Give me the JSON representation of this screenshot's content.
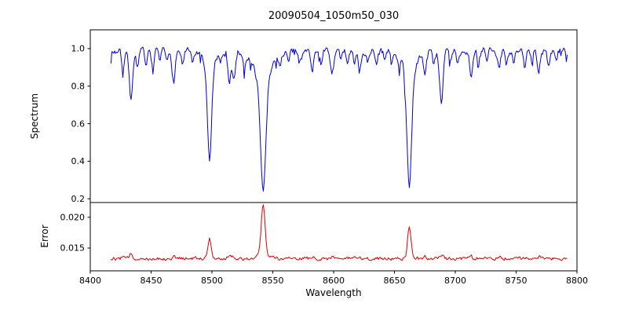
{
  "figure": {
    "title": "20090504_1050m50_030",
    "xlabel": "Wavelength",
    "background": "#ffffff"
  },
  "chart_data": [
    {
      "type": "line",
      "name": "spectrum",
      "ylabel": "Spectrum",
      "line_color": "#0000dd",
      "legend": "none",
      "grid": false,
      "xlim": [
        8400,
        8800
      ],
      "ylim": [
        0.18,
        1.1
      ],
      "xticks": [
        8400,
        8450,
        8500,
        8550,
        8600,
        8650,
        8700,
        8750,
        8800
      ],
      "yticks": [
        0.2,
        0.4,
        0.6,
        0.8,
        1.0
      ],
      "ytick_labels": [
        "0.2",
        "0.4",
        "0.6",
        "0.8",
        "1.0"
      ],
      "x_start": 8417,
      "x_end": 8792,
      "sample_step": 0.75,
      "continuum": 0.985,
      "noise_seed": 7,
      "noise_amplitude": 0.016,
      "absorption_lines": [
        [
          8427,
          0.1,
          1.1
        ],
        [
          8433.5,
          0.27,
          1.3
        ],
        [
          8439,
          0.09,
          1.0
        ],
        [
          8446,
          0.07,
          1.0
        ],
        [
          8451.5,
          0.1,
          1.1
        ],
        [
          8457,
          0.06,
          0.9
        ],
        [
          8463,
          0.06,
          0.9
        ],
        [
          8468.5,
          0.16,
          1.2
        ],
        [
          8476,
          0.07,
          1.0
        ],
        [
          8484,
          0.07,
          1.0
        ],
        [
          8498,
          0.5,
          1.7
        ],
        [
          8498,
          0.08,
          5.0
        ],
        [
          8507,
          0.06,
          0.9
        ],
        [
          8514.2,
          0.16,
          1.2
        ],
        [
          8518.1,
          0.15,
          1.2
        ],
        [
          8527,
          0.07,
          1.0
        ],
        [
          8536,
          0.05,
          0.9
        ],
        [
          8542.1,
          0.62,
          2.2
        ],
        [
          8542.1,
          0.13,
          7.0
        ],
        [
          8556,
          0.06,
          0.9
        ],
        [
          8563,
          0.06,
          0.9
        ],
        [
          8572,
          0.06,
          0.9
        ],
        [
          8582.5,
          0.09,
          1.1
        ],
        [
          8590,
          0.06,
          0.9
        ],
        [
          8598.8,
          0.12,
          1.2
        ],
        [
          8606,
          0.06,
          0.9
        ],
        [
          8611.5,
          0.08,
          1.0
        ],
        [
          8617,
          0.06,
          0.9
        ],
        [
          8621.5,
          0.09,
          1.1
        ],
        [
          8628,
          0.06,
          0.9
        ],
        [
          8635,
          0.06,
          0.9
        ],
        [
          8642,
          0.05,
          0.9
        ],
        [
          8648,
          0.06,
          0.9
        ],
        [
          8654,
          0.06,
          0.9
        ],
        [
          8662.2,
          0.62,
          1.9
        ],
        [
          8662.2,
          0.1,
          6.0
        ],
        [
          8674.8,
          0.11,
          1.1
        ],
        [
          8682,
          0.06,
          0.9
        ],
        [
          8688.6,
          0.27,
          1.4
        ],
        [
          8696,
          0.06,
          0.9
        ],
        [
          8702,
          0.06,
          0.9
        ],
        [
          8713,
          0.12,
          1.2
        ],
        [
          8719,
          0.06,
          0.9
        ],
        [
          8726,
          0.06,
          0.9
        ],
        [
          8736,
          0.1,
          1.1
        ],
        [
          8742,
          0.06,
          0.9
        ],
        [
          8748,
          0.05,
          0.9
        ],
        [
          8757,
          0.08,
          1.0
        ],
        [
          8763,
          0.06,
          0.9
        ],
        [
          8768.5,
          0.11,
          1.1
        ],
        [
          8777,
          0.09,
          1.1
        ],
        [
          8783,
          0.06,
          0.9
        ]
      ]
    },
    {
      "type": "line",
      "name": "error",
      "ylabel": "Error",
      "line_color": "#dd0000",
      "legend": "none",
      "grid": false,
      "xlim": [
        8400,
        8800
      ],
      "ylim": [
        0.0113,
        0.0224
      ],
      "yticks": [
        0.015,
        0.02
      ],
      "ytick_labels": [
        "0.015",
        "0.020"
      ],
      "x_start": 8417,
      "x_end": 8792,
      "sample_step": 0.75,
      "baseline": 0.0133,
      "noise_seed": 12,
      "noise_amplitude": 0.00025,
      "peaks": [
        [
          8427,
          0.0003,
          1.1
        ],
        [
          8433.5,
          0.0008,
          1.2
        ],
        [
          8468.5,
          0.0003,
          1.1
        ],
        [
          8498,
          0.0033,
          1.4
        ],
        [
          8514.2,
          0.0005,
          1.1
        ],
        [
          8518.1,
          0.0004,
          1.1
        ],
        [
          8542.1,
          0.008,
          1.6
        ],
        [
          8542.1,
          0.0006,
          5.0
        ],
        [
          8582.5,
          0.0002,
          1.1
        ],
        [
          8598.8,
          0.0003,
          1.1
        ],
        [
          8662.2,
          0.0052,
          1.4
        ],
        [
          8674.8,
          0.0003,
          1.1
        ],
        [
          8688.6,
          0.0007,
          1.2
        ],
        [
          8713,
          0.0003,
          1.1
        ],
        [
          8736,
          0.0002,
          1.1
        ],
        [
          8768.5,
          0.0003,
          1.1
        ]
      ]
    }
  ]
}
